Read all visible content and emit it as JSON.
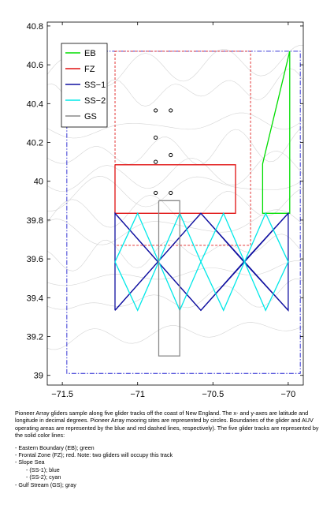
{
  "chart_data": {
    "type": "map",
    "xlim": [
      -71.6,
      -69.9
    ],
    "ylim": [
      38.95,
      40.82
    ],
    "x_ticks": [
      -71.5,
      -71,
      -70.5,
      -70
    ],
    "x_tick_labels": [
      "−71.5",
      "−71",
      "−70.5",
      "−70"
    ],
    "y_ticks": [
      39,
      39.2,
      39.4,
      39.6,
      39.8,
      40,
      40.2,
      40.4,
      40.6,
      40.8
    ],
    "y_tick_labels": [
      "39",
      "39.2",
      "39.4",
      "39.6",
      "39.8",
      "40",
      "40.2",
      "40.4",
      "40.6",
      "40.8"
    ],
    "glider_area": {
      "lon": [
        -71.47,
        -69.92
      ],
      "lat": [
        39.01,
        40.67
      ],
      "color": "#2020d0"
    },
    "auv_area": {
      "lon": [
        -71.15,
        -70.25
      ],
      "lat": [
        39.67,
        40.67
      ],
      "color": "#e02020"
    },
    "moorings": [
      {
        "lon": -70.88,
        "lat": 40.365
      },
      {
        "lon": -70.78,
        "lat": 40.365
      },
      {
        "lon": -70.88,
        "lat": 40.225
      },
      {
        "lon": -70.78,
        "lat": 40.135
      },
      {
        "lon": -70.88,
        "lat": 40.1
      },
      {
        "lon": -70.88,
        "lat": 39.94
      },
      {
        "lon": -70.78,
        "lat": 39.94
      }
    ],
    "tracks": [
      {
        "name": "EB",
        "color": "#00dd00",
        "path": [
          [
            -69.99,
            40.67
          ],
          [
            -70.17,
            40.09
          ],
          [
            -70.17,
            39.835
          ],
          [
            -69.99,
            39.835
          ],
          [
            -69.99,
            40.67
          ]
        ]
      },
      {
        "name": "FZ",
        "color": "#e01010",
        "path": [
          [
            -71.15,
            40.085
          ],
          [
            -70.35,
            40.085
          ],
          [
            -70.35,
            39.835
          ],
          [
            -71.15,
            39.835
          ],
          [
            -71.15,
            40.085
          ]
        ]
      },
      {
        "name": "SS−1",
        "color": "#1010a0",
        "segments": [
          [
            [
              -71.15,
              39.335
            ],
            [
              -71.15,
              39.835
            ],
            [
              -70.58,
              39.335
            ],
            [
              -70.0,
              39.835
            ],
            [
              -70.0,
              39.335
            ],
            [
              -70.58,
              39.835
            ],
            [
              -71.15,
              39.335
            ]
          ],
          [
            [
              -71.15,
              39.835
            ],
            [
              -70.58,
              39.335
            ]
          ],
          [
            [
              -70.58,
              39.835
            ],
            [
              -70.0,
              39.335
            ]
          ]
        ],
        "polyline_a": [
          [
            -71.15,
            39.335
          ],
          [
            -71.15,
            39.835
          ],
          [
            -70.865,
            39.585
          ],
          [
            -70.58,
            39.835
          ],
          [
            -70.295,
            39.585
          ],
          [
            -70.0,
            39.835
          ],
          [
            -70.0,
            39.335
          ],
          [
            -70.295,
            39.585
          ],
          [
            -70.58,
            39.335
          ],
          [
            -70.865,
            39.585
          ],
          [
            -71.15,
            39.335
          ]
        ],
        "polyline_b": [
          [
            -71.15,
            39.835
          ],
          [
            -70.58,
            39.335
          ],
          [
            -70.0,
            39.835
          ]
        ],
        "polyline_c": [
          [
            -71.15,
            39.335
          ],
          [
            -70.58,
            39.835
          ],
          [
            -70.0,
            39.335
          ]
        ]
      },
      {
        "name": "SS−2",
        "color": "#00e8e8",
        "polyline_a": [
          [
            -71.15,
            39.585
          ],
          [
            -71.0,
            39.835
          ],
          [
            -70.86,
            39.585
          ],
          [
            -70.72,
            39.835
          ],
          [
            -70.58,
            39.585
          ],
          [
            -70.43,
            39.835
          ],
          [
            -70.29,
            39.585
          ],
          [
            -70.15,
            39.835
          ],
          [
            -70.0,
            39.585
          ],
          [
            -70.15,
            39.335
          ],
          [
            -70.29,
            39.585
          ],
          [
            -70.43,
            39.335
          ],
          [
            -70.58,
            39.585
          ],
          [
            -70.72,
            39.335
          ],
          [
            -70.86,
            39.585
          ],
          [
            -71.0,
            39.335
          ],
          [
            -71.15,
            39.585
          ]
        ]
      },
      {
        "name": "GS",
        "color": "#8a8a8a",
        "path": [
          [
            -70.86,
            39.9
          ],
          [
            -70.72,
            39.9
          ],
          [
            -70.72,
            39.1
          ],
          [
            -70.86,
            39.1
          ],
          [
            -70.86,
            39.9
          ]
        ]
      }
    ],
    "legend": {
      "placement": "top-left",
      "entries": [
        {
          "name": "EB",
          "color": "#00dd00"
        },
        {
          "name": "FZ",
          "color": "#e01010"
        },
        {
          "name": "SS−1",
          "color": "#1010a0"
        },
        {
          "name": "SS−2",
          "color": "#00e8e8"
        },
        {
          "name": "GS",
          "color": "#8a8a8a"
        }
      ]
    }
  },
  "caption": {
    "paragraph": "Pioneer Array gliders sample along five glider tracks off the coast of New England.  The x- and y-axes are latitude and longitude in decimal degrees.  Pioneer Array mooring sites are represented by circles. Boundaries of the glider and AUV operating areas  are represented by the blue and red dashed lines, respectively).  The five glider tracks are represented by the solid color lines:",
    "items": [
      {
        "text": "- Eastern Boundary (EB); green",
        "sub": false
      },
      {
        "text": "- Frontal Zone (FZ); red. Note: two gliders will occupy this track",
        "sub": false
      },
      {
        "text": "- Slope Sea",
        "sub": false
      },
      {
        "text": "- (SS-1); blue",
        "sub": true
      },
      {
        "text": "- (SS-2); cyan",
        "sub": true
      },
      {
        "text": "- Gulf Stream (GS); gray",
        "sub": false
      }
    ]
  }
}
